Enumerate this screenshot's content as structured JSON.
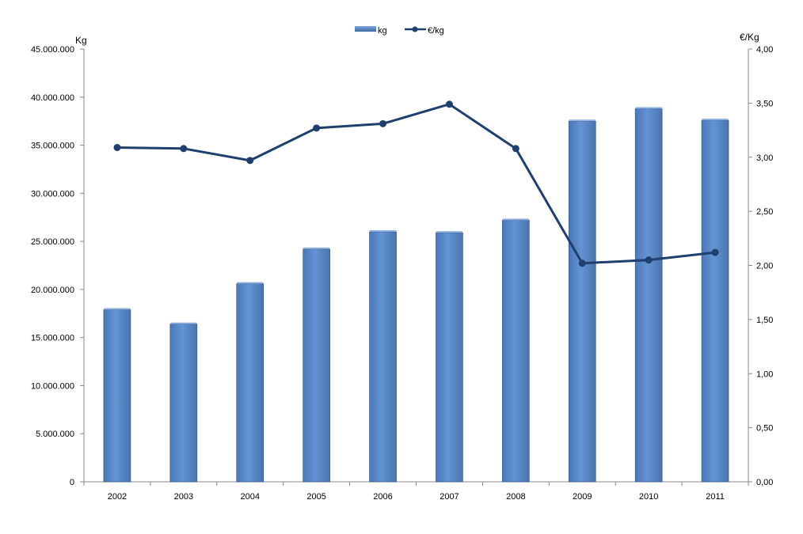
{
  "chart_data": {
    "type": "bar",
    "categories": [
      "2002",
      "2003",
      "2004",
      "2005",
      "2006",
      "2007",
      "2008",
      "2009",
      "2010",
      "2011"
    ],
    "series": [
      {
        "name": "kg",
        "type": "bar",
        "axis": "left",
        "values": [
          17900000,
          16400000,
          20600000,
          24200000,
          26000000,
          25900000,
          27200000,
          37500000,
          38800000,
          37600000
        ]
      },
      {
        "name": "€/kg",
        "type": "line",
        "axis": "right",
        "values": [
          3.09,
          3.08,
          2.97,
          3.27,
          3.31,
          3.49,
          3.08,
          2.02,
          2.05,
          2.12
        ]
      }
    ],
    "ylabel": "Kg",
    "y2label": "€/Kg",
    "ylim": [
      0,
      45000000
    ],
    "y2lim": [
      0,
      4.0
    ],
    "yticks": [
      "0",
      "5.000.000",
      "10.000.000",
      "15.000.000",
      "20.000.000",
      "25.000.000",
      "30.000.000",
      "35.000.000",
      "40.000.000",
      "45.000.000"
    ],
    "y2ticks": [
      "0,00",
      "0,50",
      "1,00",
      "1,50",
      "2,00",
      "2,50",
      "3,00",
      "3,50",
      "4,00"
    ],
    "grid": false,
    "legend_position": "top-center",
    "colors": {
      "bar": "#5a8acb",
      "bar_edge": "#2f4f7e",
      "line": "#1f3f6e"
    }
  }
}
